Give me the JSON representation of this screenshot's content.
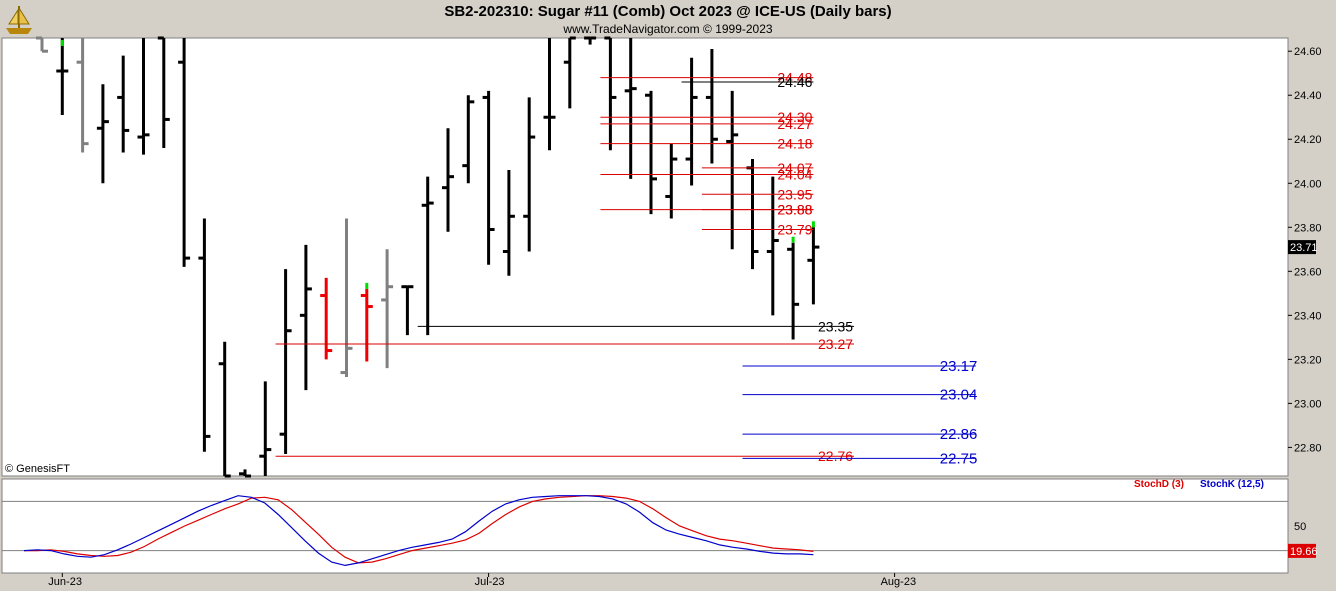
{
  "header": {
    "title": "SB2-202310:  Sugar #11 (Comb) Oct 2023 @ ICE-US  (Daily bars)",
    "subtitle": "www.TradeNavigator.com © 1999-2023"
  },
  "watermark": "© GenesisFT",
  "colors": {
    "up_tick": "#00dd00",
    "down_bar": "#ee0000",
    "inside_bar": "#808080",
    "normal_bar": "#000000",
    "level_red": "#dd0000",
    "level_black": "#000000",
    "level_blue": "#0000cc",
    "stoch_d": "#dd0000",
    "stoch_k": "#0000cc",
    "background": "#ffffff",
    "frame": "#d4d0c8"
  },
  "chart_data": [
    {
      "type": "ohlc",
      "title": "SB2-202310:  Sugar #11 (Comb) Oct 2023 @ ICE-US  (Daily bars)",
      "ylim": [
        22.67,
        24.66
      ],
      "y_ticks": [
        "24.60",
        "24.40",
        "24.20",
        "24.00",
        "23.80",
        "23.60",
        "23.40",
        "23.20",
        "23.00",
        "22.80"
      ],
      "x_ticks": [
        {
          "label": "Jun-23",
          "index": 1
        },
        {
          "label": "Jul-23",
          "index": 22
        },
        {
          "label": "Aug-23",
          "index": 42
        }
      ],
      "last_price": "23.71",
      "bars": [
        {
          "o": 24.66,
          "h": 24.66,
          "l": 24.6,
          "c": 24.6,
          "color": "inside"
        },
        {
          "o": 24.51,
          "h": 24.66,
          "l": 24.31,
          "c": 24.51,
          "color": "normal",
          "tick": "green"
        },
        {
          "o": 24.55,
          "h": 24.66,
          "l": 24.14,
          "c": 24.18,
          "color": "inside"
        },
        {
          "o": 24.25,
          "h": 24.45,
          "l": 24.0,
          "c": 24.28,
          "color": "normal"
        },
        {
          "o": 24.39,
          "h": 24.58,
          "l": 24.14,
          "c": 24.24,
          "color": "normal"
        },
        {
          "o": 24.21,
          "h": 24.66,
          "l": 24.13,
          "c": 24.22,
          "color": "normal"
        },
        {
          "o": 24.66,
          "h": 24.66,
          "l": 24.16,
          "c": 24.29,
          "color": "normal"
        },
        {
          "o": 24.55,
          "h": 24.66,
          "l": 23.62,
          "c": 23.66,
          "color": "normal"
        },
        {
          "o": 23.66,
          "h": 23.84,
          "l": 22.78,
          "c": 22.85,
          "color": "normal"
        },
        {
          "o": 23.18,
          "h": 23.28,
          "l": 22.67,
          "c": 22.67,
          "color": "normal"
        },
        {
          "o": 22.68,
          "h": 22.7,
          "l": 22.67,
          "c": 22.67,
          "color": "normal"
        },
        {
          "o": 22.76,
          "h": 23.1,
          "l": 22.67,
          "c": 22.79,
          "color": "normal"
        },
        {
          "o": 22.86,
          "h": 23.61,
          "l": 22.77,
          "c": 23.33,
          "color": "normal"
        },
        {
          "o": 23.4,
          "h": 23.72,
          "l": 23.06,
          "c": 23.52,
          "color": "normal"
        },
        {
          "o": 23.49,
          "h": 23.57,
          "l": 23.2,
          "c": 23.24,
          "color": "down"
        },
        {
          "o": 23.14,
          "h": 23.84,
          "l": 23.12,
          "c": 23.25,
          "color": "inside"
        },
        {
          "o": 23.49,
          "h": 23.52,
          "l": 23.19,
          "c": 23.44,
          "color": "down",
          "tick": "green"
        },
        {
          "o": 23.47,
          "h": 23.7,
          "l": 23.16,
          "c": 23.53,
          "color": "inside"
        },
        {
          "o": 23.53,
          "h": 23.53,
          "l": 23.31,
          "c": 23.53,
          "color": "normal"
        },
        {
          "o": 23.9,
          "h": 24.03,
          "l": 23.31,
          "c": 23.91,
          "color": "normal"
        },
        {
          "o": 23.98,
          "h": 24.25,
          "l": 23.78,
          "c": 24.03,
          "color": "normal"
        },
        {
          "o": 24.08,
          "h": 24.4,
          "l": 24.0,
          "c": 24.37,
          "color": "normal"
        },
        {
          "o": 24.39,
          "h": 24.42,
          "l": 23.63,
          "c": 23.79,
          "color": "normal"
        },
        {
          "o": 23.69,
          "h": 24.06,
          "l": 23.58,
          "c": 23.85,
          "color": "normal"
        },
        {
          "o": 23.85,
          "h": 24.39,
          "l": 23.69,
          "c": 24.21,
          "color": "normal"
        },
        {
          "o": 24.3,
          "h": 24.66,
          "l": 24.15,
          "c": 24.3,
          "color": "normal"
        },
        {
          "o": 24.55,
          "h": 24.66,
          "l": 24.34,
          "c": 24.66,
          "color": "normal"
        },
        {
          "o": 24.66,
          "h": 24.66,
          "l": 24.63,
          "c": 24.66,
          "color": "normal"
        },
        {
          "o": 24.66,
          "h": 24.66,
          "l": 24.15,
          "c": 24.39,
          "color": "normal"
        },
        {
          "o": 24.42,
          "h": 24.66,
          "l": 24.02,
          "c": 24.43,
          "color": "normal"
        },
        {
          "o": 24.4,
          "h": 24.42,
          "l": 23.86,
          "c": 24.02,
          "color": "normal"
        },
        {
          "o": 23.94,
          "h": 24.18,
          "l": 23.84,
          "c": 24.11,
          "color": "normal"
        },
        {
          "o": 24.11,
          "h": 24.57,
          "l": 23.99,
          "c": 24.39,
          "color": "normal"
        },
        {
          "o": 24.39,
          "h": 24.61,
          "l": 24.09,
          "c": 24.2,
          "color": "normal"
        },
        {
          "o": 24.19,
          "h": 24.42,
          "l": 23.7,
          "c": 24.22,
          "color": "normal"
        },
        {
          "o": 24.07,
          "h": 24.11,
          "l": 23.61,
          "c": 23.69,
          "color": "normal"
        },
        {
          "o": 23.69,
          "h": 24.03,
          "l": 23.4,
          "c": 23.74,
          "color": "normal"
        },
        {
          "o": 23.7,
          "h": 23.73,
          "l": 23.29,
          "c": 23.45,
          "color": "normal",
          "tick": "green"
        },
        {
          "o": 23.65,
          "h": 23.8,
          "l": 23.45,
          "c": 23.71,
          "color": "normal",
          "tick": "green"
        }
      ],
      "levels": [
        {
          "price": 24.48,
          "label": "24.48",
          "color": "red",
          "x_start": 28,
          "x_end": 38
        },
        {
          "price": 24.46,
          "label": "24.46",
          "color": "black",
          "x_start": 32,
          "x_end": 38
        },
        {
          "price": 24.3,
          "label": "24.30",
          "color": "red",
          "x_start": 28,
          "x_end": 38
        },
        {
          "price": 24.27,
          "label": "24.27",
          "color": "red",
          "x_start": 28,
          "x_end": 38
        },
        {
          "price": 24.18,
          "label": "24.18",
          "color": "red",
          "x_start": 28,
          "x_end": 38
        },
        {
          "price": 24.07,
          "label": "24.07",
          "color": "red",
          "x_start": 33,
          "x_end": 38
        },
        {
          "price": 24.04,
          "label": "24.04",
          "color": "red",
          "x_start": 28,
          "x_end": 38
        },
        {
          "price": 23.95,
          "label": "23.95",
          "color": "red",
          "x_start": 33,
          "x_end": 38
        },
        {
          "price": 23.88,
          "label": "23.88",
          "color": "red",
          "x_start": 28,
          "x_end": 38
        },
        {
          "price": 23.88,
          "label": "23.88",
          "color": "red",
          "x_start": 33,
          "x_end": 38
        },
        {
          "price": 23.79,
          "label": "23.79",
          "color": "red",
          "x_start": 33,
          "x_end": 38
        },
        {
          "price": 23.35,
          "label": "23.35",
          "color": "black",
          "x_start": 19,
          "x_end": 40
        },
        {
          "price": 23.27,
          "label": "23.27",
          "color": "red",
          "x_start": 12,
          "x_end": 40
        },
        {
          "price": 23.17,
          "label": "23.17",
          "color": "blue",
          "x_start": 35,
          "x_end": 46
        },
        {
          "price": 23.04,
          "label": "23.04",
          "color": "blue",
          "x_start": 35,
          "x_end": 46
        },
        {
          "price": 22.86,
          "label": "22.86",
          "color": "blue",
          "x_start": 35,
          "x_end": 46
        },
        {
          "price": 22.76,
          "label": "22.76",
          "color": "red",
          "x_start": 12,
          "x_end": 40
        },
        {
          "price": 22.75,
          "label": "22.75",
          "color": "blue",
          "x_start": 35,
          "x_end": 46
        }
      ]
    },
    {
      "type": "line",
      "legend": [
        {
          "name": "StochD (3)",
          "color": "red"
        },
        {
          "name": "StochK (12,5)",
          "color": "blue"
        }
      ],
      "ylim": [
        0,
        100
      ],
      "y_ticks": [
        "50"
      ],
      "reference_lines": [
        80,
        20
      ],
      "last_value": "19.66",
      "series": [
        {
          "name": "StochD (3)",
          "values": [
            20,
            20,
            21,
            19,
            16,
            14,
            13,
            14,
            18,
            25,
            34,
            42,
            50,
            57,
            64,
            71,
            77,
            84,
            85,
            82,
            70,
            55,
            40,
            24,
            12,
            5,
            6,
            10,
            15,
            20,
            23,
            26,
            29,
            33,
            41,
            53,
            64,
            73,
            80,
            83,
            85,
            86,
            87,
            87,
            86,
            84,
            80,
            71,
            60,
            50,
            44,
            38,
            34,
            32,
            29,
            26,
            23,
            22,
            21,
            19
          ]
        },
        {
          "name": "StochK (12,5)",
          "values": [
            20,
            21,
            20,
            16,
            13,
            12,
            15,
            21,
            28,
            36,
            44,
            52,
            60,
            68,
            75,
            81,
            87,
            85,
            78,
            64,
            48,
            32,
            17,
            6,
            2,
            5,
            10,
            15,
            20,
            24,
            27,
            30,
            34,
            43,
            56,
            68,
            77,
            82,
            85,
            86,
            87,
            87,
            87,
            86,
            83,
            77,
            67,
            54,
            45,
            40,
            36,
            32,
            27,
            24,
            22,
            19,
            17,
            16,
            16,
            15
          ]
        }
      ]
    }
  ]
}
